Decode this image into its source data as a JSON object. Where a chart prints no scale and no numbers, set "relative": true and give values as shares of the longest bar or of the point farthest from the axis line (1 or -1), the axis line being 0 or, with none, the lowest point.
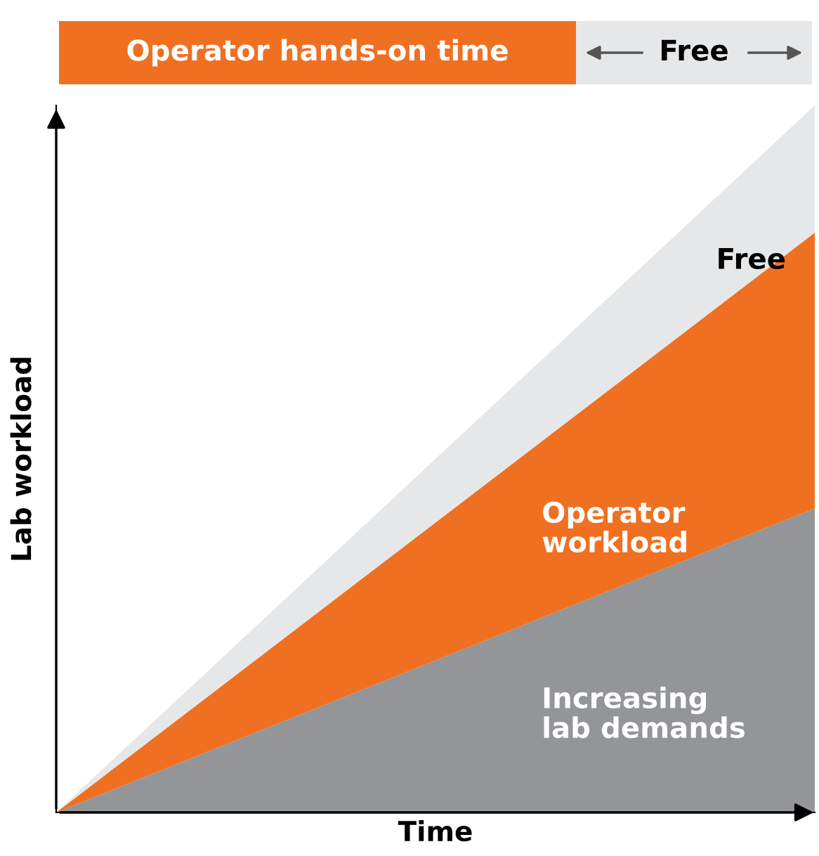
{
  "chart_data": {
    "type": "area",
    "stacked": true,
    "relative": true,
    "xlabel": "Time",
    "ylabel": "Lab workload",
    "categories": [
      null,
      null
    ],
    "series": [
      {
        "name": "Increasing\nlab demands",
        "color": "#939598",
        "values": [
          0,
          0.43
        ]
      },
      {
        "name": "Operator\nworkload",
        "color": "#f07022",
        "values": [
          0,
          0.39
        ]
      },
      {
        "name": "Free",
        "color": "#e6e7e8",
        "values": [
          0,
          0.18
        ]
      }
    ],
    "annotations": [
      "Operator hands-on time",
      "Free"
    ],
    "legend": false
  }
}
